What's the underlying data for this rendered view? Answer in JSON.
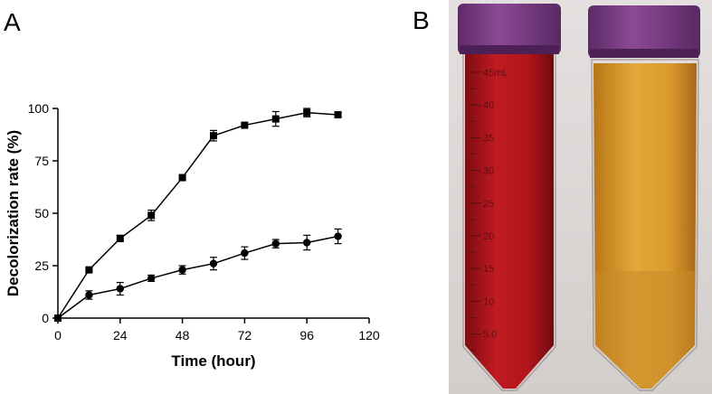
{
  "panels": {
    "a_label": "A",
    "b_label": "B"
  },
  "chart_data": {
    "type": "line",
    "title": "",
    "xlabel": "Time (hour)",
    "ylabel": "Decolorization rate (%)",
    "xlim": [
      0,
      120
    ],
    "ylim": [
      0,
      100
    ],
    "xticks": [
      "0",
      "24",
      "48",
      "72",
      "96",
      "120"
    ],
    "yticks": [
      "0",
      "25",
      "50",
      "75",
      "100"
    ],
    "grid": false,
    "legend": "none",
    "series": [
      {
        "marker": "square",
        "x": [
          0,
          12,
          24,
          36,
          48,
          60,
          72,
          84,
          96,
          108
        ],
        "values": [
          0,
          23,
          38,
          49,
          67,
          87,
          92,
          95,
          98,
          97
        ],
        "errors": [
          0,
          1,
          1.5,
          2.5,
          1,
          2.5,
          1,
          3.5,
          2,
          1
        ]
      },
      {
        "marker": "circle",
        "x": [
          0,
          12,
          24,
          36,
          48,
          60,
          72,
          84,
          96,
          108
        ],
        "values": [
          0,
          11,
          14,
          19,
          23,
          26,
          31,
          35.5,
          36,
          39
        ],
        "errors": [
          0,
          2,
          3,
          1.5,
          2,
          3,
          3,
          2,
          3.5,
          3.5
        ]
      }
    ]
  },
  "photo": {
    "tube_left": {
      "marks": [
        "45mL",
        "40",
        "35",
        "30",
        "25",
        "20",
        "15",
        "10",
        "5.0"
      ],
      "liquid_color": "#b3151c",
      "cap_color": "#7a3a82"
    },
    "tube_right": {
      "liquid_color": "#d99a2a",
      "cap_color": "#7a3a82"
    }
  }
}
